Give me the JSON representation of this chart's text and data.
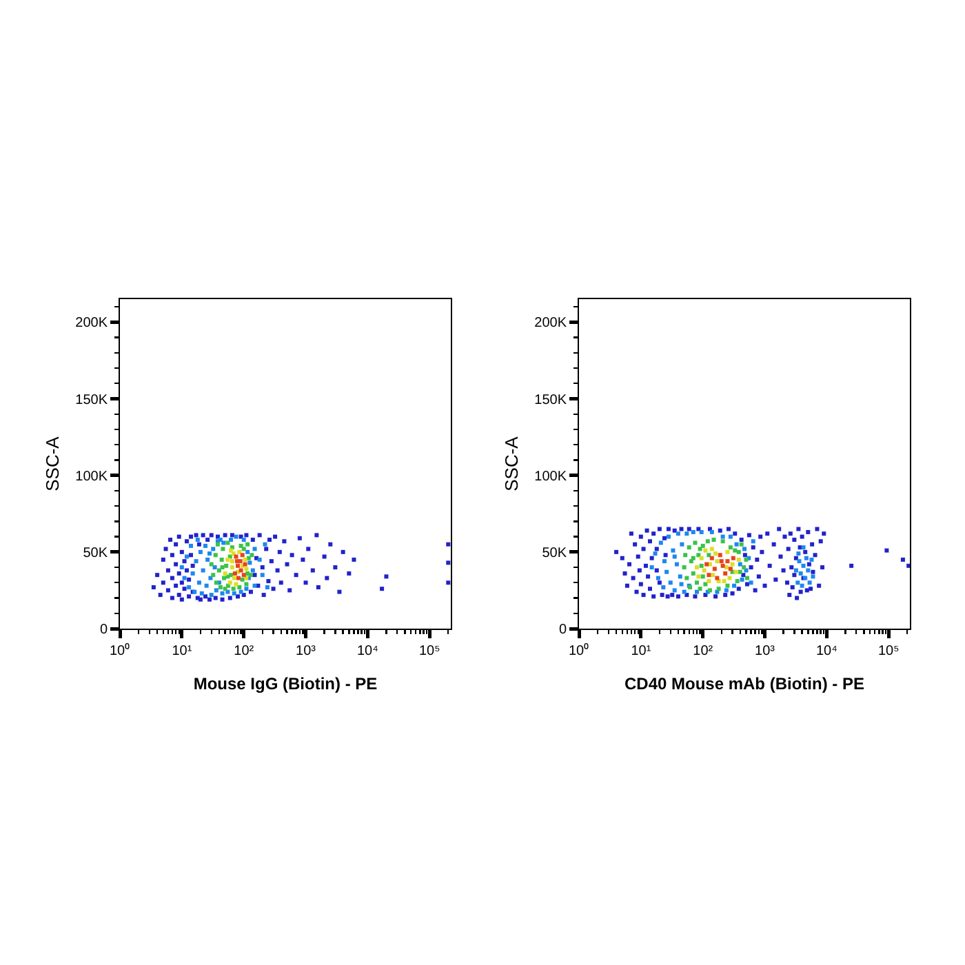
{
  "chart_data": [
    {
      "type": "scatter",
      "xlabel": "Mouse IgG (Biotin) - PE",
      "ylabel": "SSC-A",
      "log": "x",
      "marker": "square",
      "xlim": [
        1,
        220000
      ],
      "ylim": [
        0,
        215000
      ],
      "xticks": [
        {
          "value": 1,
          "label": "10⁰"
        },
        {
          "value": 2,
          "label": null
        },
        {
          "value": 3,
          "label": null
        },
        {
          "value": 4,
          "label": null
        },
        {
          "value": 5,
          "label": null
        },
        {
          "value": 6,
          "label": null
        },
        {
          "value": 7,
          "label": null
        },
        {
          "value": 8,
          "label": null
        },
        {
          "value": 9,
          "label": null
        },
        {
          "value": 10,
          "label": "10¹"
        },
        {
          "value": 20,
          "label": null
        },
        {
          "value": 30,
          "label": null
        },
        {
          "value": 40,
          "label": null
        },
        {
          "value": 50,
          "label": null
        },
        {
          "value": 60,
          "label": null
        },
        {
          "value": 70,
          "label": null
        },
        {
          "value": 80,
          "label": null
        },
        {
          "value": 90,
          "label": null
        },
        {
          "value": 100,
          "label": "10²"
        },
        {
          "value": 200,
          "label": null
        },
        {
          "value": 300,
          "label": null
        },
        {
          "value": 400,
          "label": null
        },
        {
          "value": 500,
          "label": null
        },
        {
          "value": 600,
          "label": null
        },
        {
          "value": 700,
          "label": null
        },
        {
          "value": 800,
          "label": null
        },
        {
          "value": 900,
          "label": null
        },
        {
          "value": 1000,
          "label": "10³"
        },
        {
          "value": 2000,
          "label": null
        },
        {
          "value": 3000,
          "label": null
        },
        {
          "value": 4000,
          "label": null
        },
        {
          "value": 5000,
          "label": null
        },
        {
          "value": 6000,
          "label": null
        },
        {
          "value": 7000,
          "label": null
        },
        {
          "value": 8000,
          "label": null
        },
        {
          "value": 9000,
          "label": null
        },
        {
          "value": 10000,
          "label": "10⁴"
        },
        {
          "value": 20000,
          "label": null
        },
        {
          "value": 30000,
          "label": null
        },
        {
          "value": 40000,
          "label": null
        },
        {
          "value": 50000,
          "label": null
        },
        {
          "value": 60000,
          "label": null
        },
        {
          "value": 70000,
          "label": null
        },
        {
          "value": 80000,
          "label": null
        },
        {
          "value": 90000,
          "label": null
        },
        {
          "value": 100000,
          "label": "10⁵"
        },
        {
          "value": 200000,
          "label": null
        }
      ],
      "yticks": [
        0,
        {
          "value": 10000,
          "label": null
        },
        {
          "value": 20000,
          "label": null
        },
        {
          "value": 30000,
          "label": null
        },
        {
          "value": 40000,
          "label": null
        },
        {
          "value": 50000,
          "label": "50K"
        },
        {
          "value": 60000,
          "label": null
        },
        {
          "value": 70000,
          "label": null
        },
        {
          "value": 80000,
          "label": null
        },
        {
          "value": 90000,
          "label": null
        },
        {
          "value": 100000,
          "label": "100K"
        },
        {
          "value": 110000,
          "label": null
        },
        {
          "value": 120000,
          "label": null
        },
        {
          "value": 130000,
          "label": null
        },
        {
          "value": 140000,
          "label": null
        },
        {
          "value": 150000,
          "label": "150K"
        },
        {
          "value": 160000,
          "label": null
        },
        {
          "value": 170000,
          "label": null
        },
        {
          "value": 180000,
          "label": null
        },
        {
          "value": 190000,
          "label": null
        },
        {
          "value": 200000,
          "label": "200K"
        },
        {
          "value": 210000,
          "label": null
        }
      ],
      "series": [
        {
          "color": "#2222cc",
          "x": [
            3.5,
            4.5,
            4,
            5,
            5,
            5.5,
            6,
            6,
            6.5,
            7,
            7,
            7,
            8,
            8,
            8,
            9,
            9,
            9,
            10,
            10,
            10,
            11,
            11,
            12,
            12,
            13,
            13,
            14,
            14,
            15,
            15,
            17,
            18,
            19,
            20,
            22,
            24,
            26,
            28,
            30,
            35,
            38,
            45,
            50,
            60,
            65,
            80,
            90,
            100,
            110,
            130,
            140,
            150,
            160,
            170,
            180,
            200,
            210,
            230,
            250,
            260,
            280,
            300,
            320,
            350,
            380,
            400,
            450,
            500,
            550,
            600,
            700,
            800,
            900,
            1000,
            1100,
            1300,
            1500,
            1600,
            2000,
            2200,
            2500,
            3000,
            3500,
            4000,
            5000,
            6000,
            17000,
            20000,
            200000,
            200000,
            200000
          ],
          "values": [
            27000,
            22000,
            35000,
            30000,
            45000,
            52000,
            25000,
            38000,
            58000,
            20000,
            33000,
            48000,
            42000,
            28000,
            55000,
            22000,
            36000,
            60000,
            30000,
            50000,
            19000,
            44000,
            26000,
            57000,
            38000,
            21000,
            32000,
            48000,
            60000,
            24000,
            41000,
            61000,
            20000,
            55000,
            19000,
            61000,
            21000,
            58000,
            19000,
            61000,
            20000,
            60000,
            19000,
            61000,
            20000,
            61000,
            21000,
            60000,
            22000,
            61000,
            24000,
            58000,
            35000,
            46000,
            28000,
            61000,
            40000,
            22000,
            52000,
            31000,
            58000,
            44000,
            26000,
            60000,
            38000,
            50000,
            30000,
            57000,
            42000,
            25000,
            48000,
            35000,
            59000,
            45000,
            30000,
            52000,
            38000,
            61000,
            27000,
            47000,
            33000,
            55000,
            40000,
            24000,
            50000,
            36000,
            45000,
            26000,
            34000,
            55000,
            43000,
            30000
          ]
        },
        {
          "color": "#1e88f0",
          "x": [
            10,
            11,
            12,
            13,
            14,
            15,
            16,
            17,
            18,
            19,
            20,
            21,
            22,
            24,
            25,
            26,
            28,
            29,
            30,
            32,
            34,
            36,
            38,
            40,
            42,
            45,
            47,
            55,
            62,
            70,
            75,
            90,
            100,
            110,
            115,
            120,
            125,
            140,
            150,
            150,
            180,
            200,
            220,
            240
          ],
          "values": [
            40000,
            33000,
            47000,
            27000,
            54000,
            36000,
            24000,
            44000,
            58000,
            30000,
            50000,
            23000,
            38000,
            54000,
            28000,
            45000,
            49000,
            33000,
            22000,
            52000,
            40000,
            25000,
            57000,
            30000,
            58000,
            23000,
            56000,
            24000,
            58000,
            23000,
            60000,
            24000,
            58000,
            26000,
            50000,
            33000,
            43000,
            38000,
            52000,
            28000,
            45000,
            35000,
            55000,
            27000
          ]
        },
        {
          "color": "#3cc24a",
          "x": [
            30,
            32,
            35,
            36,
            38,
            40,
            42,
            44,
            46,
            48,
            50,
            52,
            55,
            56,
            60,
            62,
            65,
            68,
            85,
            90,
            95,
            100,
            115,
            110,
            115,
            120,
            130,
            135,
            45,
            55
          ],
          "values": [
            42000,
            35000,
            48000,
            30000,
            55000,
            38000,
            27000,
            45000,
            52000,
            33000,
            26000,
            41000,
            56000,
            28000,
            47000,
            35000,
            53000,
            26000,
            27000,
            54000,
            32000,
            52000,
            36000,
            29000,
            55000,
            46000,
            35000,
            48000,
            40000,
            34000
          ]
        },
        {
          "color": "#dede26",
          "x": [
            50,
            55,
            60,
            62,
            65,
            70,
            68,
            65,
            80,
            85,
            95,
            110,
            105,
            110,
            75
          ],
          "values": [
            36000,
            45000,
            30000,
            51000,
            40000,
            33000,
            49000,
            44000,
            37000,
            50000,
            41000,
            33000,
            45000,
            39000,
            29000
          ]
        },
        {
          "color": "#e8431e",
          "x": [
            72,
            75,
            80,
            82,
            88,
            90,
            95,
            100,
            78,
            105
          ],
          "values": [
            36000,
            47000,
            41000,
            33000,
            44000,
            38000,
            48000,
            35000,
            44000,
            42000
          ]
        }
      ]
    },
    {
      "type": "scatter",
      "xlabel": "CD40 Mouse mAb (Biotin) - PE",
      "ylabel": "SSC-A",
      "log": "x",
      "marker": "square",
      "xlim": [
        1,
        220000
      ],
      "ylim": [
        0,
        215000
      ],
      "xticks": [
        {
          "value": 1,
          "label": "10⁰"
        },
        {
          "value": 2,
          "label": null
        },
        {
          "value": 3,
          "label": null
        },
        {
          "value": 4,
          "label": null
        },
        {
          "value": 5,
          "label": null
        },
        {
          "value": 6,
          "label": null
        },
        {
          "value": 7,
          "label": null
        },
        {
          "value": 8,
          "label": null
        },
        {
          "value": 9,
          "label": null
        },
        {
          "value": 10,
          "label": "10¹"
        },
        {
          "value": 20,
          "label": null
        },
        {
          "value": 30,
          "label": null
        },
        {
          "value": 40,
          "label": null
        },
        {
          "value": 50,
          "label": null
        },
        {
          "value": 60,
          "label": null
        },
        {
          "value": 70,
          "label": null
        },
        {
          "value": 80,
          "label": null
        },
        {
          "value": 90,
          "label": null
        },
        {
          "value": 100,
          "label": "10²"
        },
        {
          "value": 200,
          "label": null
        },
        {
          "value": 300,
          "label": null
        },
        {
          "value": 400,
          "label": null
        },
        {
          "value": 500,
          "label": null
        },
        {
          "value": 600,
          "label": null
        },
        {
          "value": 700,
          "label": null
        },
        {
          "value": 800,
          "label": null
        },
        {
          "value": 900,
          "label": null
        },
        {
          "value": 1000,
          "label": "10³"
        },
        {
          "value": 2000,
          "label": null
        },
        {
          "value": 3000,
          "label": null
        },
        {
          "value": 4000,
          "label": null
        },
        {
          "value": 5000,
          "label": null
        },
        {
          "value": 6000,
          "label": null
        },
        {
          "value": 7000,
          "label": null
        },
        {
          "value": 8000,
          "label": null
        },
        {
          "value": 9000,
          "label": null
        },
        {
          "value": 10000,
          "label": "10⁴"
        },
        {
          "value": 20000,
          "label": null
        },
        {
          "value": 30000,
          "label": null
        },
        {
          "value": 40000,
          "label": null
        },
        {
          "value": 50000,
          "label": null
        },
        {
          "value": 60000,
          "label": null
        },
        {
          "value": 70000,
          "label": null
        },
        {
          "value": 80000,
          "label": null
        },
        {
          "value": 90000,
          "label": null
        },
        {
          "value": 100000,
          "label": "10⁵"
        },
        {
          "value": 200000,
          "label": null
        }
      ],
      "yticks": [
        0,
        {
          "value": 10000,
          "label": null
        },
        {
          "value": 20000,
          "label": null
        },
        {
          "value": 30000,
          "label": null
        },
        {
          "value": 40000,
          "label": null
        },
        {
          "value": 50000,
          "label": "50K"
        },
        {
          "value": 60000,
          "label": null
        },
        {
          "value": 70000,
          "label": null
        },
        {
          "value": 80000,
          "label": null
        },
        {
          "value": 90000,
          "label": null
        },
        {
          "value": 100000,
          "label": "100K"
        },
        {
          "value": 110000,
          "label": null
        },
        {
          "value": 120000,
          "label": null
        },
        {
          "value": 130000,
          "label": null
        },
        {
          "value": 140000,
          "label": null
        },
        {
          "value": 150000,
          "label": "150K"
        },
        {
          "value": 160000,
          "label": null
        },
        {
          "value": 170000,
          "label": null
        },
        {
          "value": 180000,
          "label": null
        },
        {
          "value": 190000,
          "label": null
        },
        {
          "value": 200000,
          "label": "200K"
        },
        {
          "value": 210000,
          "label": null
        }
      ],
      "series": [
        {
          "color": "#2222cc",
          "x": [
            4,
            5,
            5.5,
            6,
            6.5,
            7,
            7.5,
            8,
            8.5,
            9,
            9.5,
            10,
            10,
            11,
            11,
            12,
            12.5,
            13,
            14,
            14,
            15,
            16,
            16,
            18,
            18,
            20,
            20,
            22,
            24,
            25,
            27,
            28,
            32,
            35,
            40,
            45,
            55,
            60,
            75,
            85,
            110,
            130,
            160,
            190,
            230,
            260,
            300,
            330,
            380,
            420,
            450,
            480,
            520,
            560,
            600,
            650,
            700,
            750,
            800,
            850,
            900,
            1000,
            1100,
            1200,
            1400,
            1500,
            1700,
            1800,
            2000,
            2100,
            2300,
            2400,
            2500,
            2600,
            2700,
            2800,
            3000,
            3000,
            3200,
            3300,
            3500,
            3700,
            3800,
            4000,
            4200,
            4500,
            4800,
            5000,
            5200,
            5500,
            5800,
            6000,
            6500,
            7000,
            7500,
            8000,
            8500,
            9000,
            25000,
            93000,
            170000,
            210000
          ],
          "values": [
            50000,
            46000,
            36000,
            28000,
            42000,
            62000,
            33000,
            55000,
            24000,
            47000,
            38000,
            60000,
            29000,
            52000,
            22000,
            41000,
            64000,
            34000,
            57000,
            26000,
            46000,
            21000,
            62000,
            38000,
            52000,
            30000,
            65000,
            22000,
            59000,
            48000,
            21000,
            65000,
            22000,
            64000,
            21000,
            65000,
            22000,
            65000,
            21000,
            65000,
            22000,
            65000,
            21000,
            64000,
            22000,
            65000,
            23000,
            62000,
            26000,
            58000,
            35000,
            48000,
            29000,
            61000,
            40000,
            53000,
            25000,
            45000,
            34000,
            60000,
            50000,
            28000,
            62000,
            41000,
            55000,
            32000,
            65000,
            47000,
            38000,
            60000,
            30000,
            52000,
            22000,
            62000,
            40000,
            27000,
            58000,
            35000,
            46000,
            20000,
            65000,
            53000,
            24000,
            60000,
            33000,
            50000,
            25000,
            63000,
            42000,
            26000,
            55000,
            37000,
            48000,
            65000,
            28000,
            57000,
            40000,
            62000,
            41000,
            51000,
            45000,
            41000
          ]
        },
        {
          "color": "#1e88f0",
          "x": [
            15,
            17,
            19,
            21,
            23,
            24,
            26,
            28,
            30,
            33,
            35,
            38,
            40,
            43,
            46,
            50,
            55,
            60,
            70,
            80,
            95,
            120,
            140,
            170,
            210,
            240,
            280,
            320,
            350,
            400,
            430,
            470,
            500,
            550,
            600,
            650,
            35,
            45,
            3200,
            3400,
            3600,
            3800,
            4000,
            4200,
            4500,
            4700,
            5000,
            5300,
            5700,
            6000,
            3500,
            4200
          ],
          "values": [
            40000,
            49000,
            33000,
            56000,
            27000,
            44000,
            37000,
            60000,
            30000,
            51000,
            25000,
            42000,
            62000,
            34000,
            55000,
            24000,
            62000,
            28000,
            63000,
            24000,
            63000,
            24000,
            63000,
            24000,
            60000,
            25000,
            60000,
            28000,
            55000,
            42000,
            32000,
            52000,
            38000,
            46000,
            30000,
            57000,
            47000,
            29000,
            38000,
            30000,
            44000,
            36000,
            28000,
            41000,
            33000,
            46000,
            38000,
            30000,
            45000,
            34000,
            49000,
            53000
          ]
        },
        {
          "color": "#3cc24a",
          "x": [
            50,
            52,
            55,
            60,
            62,
            65,
            70,
            75,
            80,
            85,
            90,
            95,
            100,
            110,
            120,
            130,
            150,
            180,
            210,
            250,
            280,
            300,
            330,
            360,
            380,
            400,
            460,
            500,
            520,
            70,
            100,
            90,
            420,
            125
          ],
          "values": [
            40000,
            48000,
            33000,
            53000,
            27000,
            44000,
            36000,
            56000,
            30000,
            48000,
            26000,
            41000,
            54000,
            29000,
            57000,
            25000,
            58000,
            26000,
            57000,
            28000,
            53000,
            37000,
            51000,
            31000,
            50000,
            37000,
            40000,
            45000,
            33000,
            46000,
            34000,
            52000,
            55000,
            48000
          ]
        },
        {
          "color": "#dede26",
          "x": [
            80,
            85,
            95,
            105,
            110,
            125,
            130,
            145,
            160,
            180,
            170,
            240,
            250,
            270,
            300,
            340,
            380,
            140,
            220
          ],
          "values": [
            40000,
            34000,
            46000,
            38000,
            51000,
            31000,
            42000,
            35000,
            49000,
            31000,
            44000,
            40000,
            50000,
            33000,
            42000,
            37000,
            45000,
            52000,
            31000
          ]
        },
        {
          "color": "#e8431e",
          "x": [
            115,
            125,
            140,
            155,
            170,
            190,
            210,
            230,
            250,
            280,
            310,
            200
          ],
          "values": [
            42000,
            35000,
            46000,
            39000,
            33000,
            48000,
            41000,
            36000,
            44000,
            39000,
            46000,
            44000
          ]
        }
      ]
    }
  ]
}
